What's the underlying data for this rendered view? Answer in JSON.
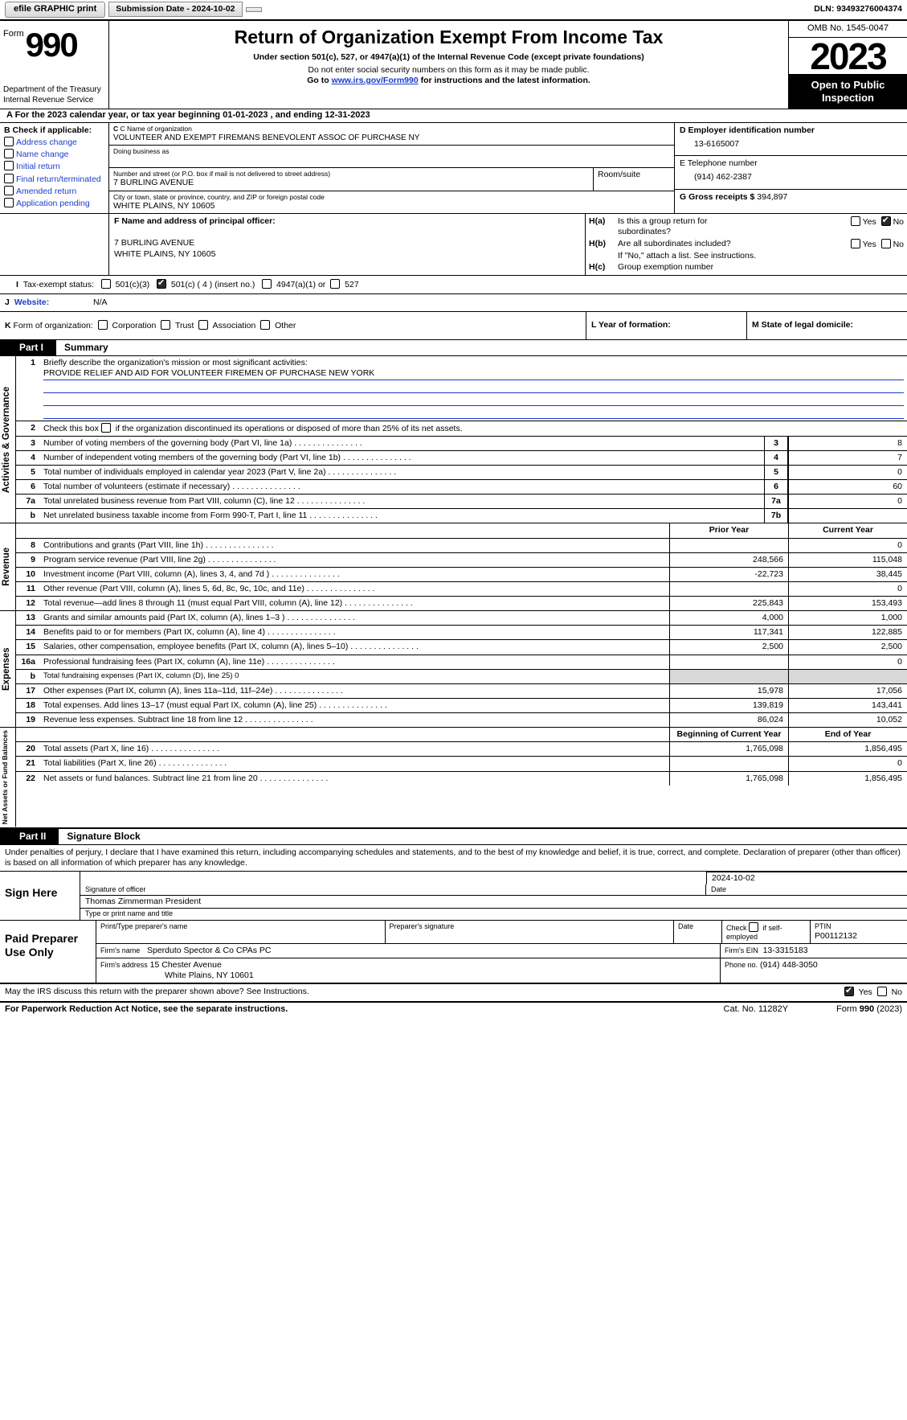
{
  "topbar": {
    "efile": "efile GRAPHIC print",
    "submission": "Submission Date - 2024-10-02",
    "dln": "DLN: 93493276004374"
  },
  "header": {
    "form_word": "Form",
    "form_num": "990",
    "dept": "Department of the Treasury\nInternal Revenue Service",
    "title": "Return of Organization Exempt From Income Tax",
    "sub1": "Under section 501(c), 527, or 4947(a)(1) of the Internal Revenue Code (except private foundations)",
    "sub2": "Do not enter social security numbers on this form as it may be made public.",
    "sub3_pre": "Go to ",
    "sub3_link": "www.irs.gov/Form990",
    "sub3_post": " for instructions and the latest information.",
    "omb": "OMB No. 1545-0047",
    "year": "2023",
    "inspect": "Open to Public Inspection"
  },
  "row_a": "A  For the 2023 calendar year, or tax year beginning 01-01-2023    , and ending 12-31-2023",
  "col_b": {
    "header": "B Check if applicable:",
    "items": [
      "Address change",
      "Name change",
      "Initial return",
      "Final return/terminated",
      "Amended return",
      "Application pending"
    ]
  },
  "col_c": {
    "name_lbl": "C Name of organization",
    "name": "VOLUNTEER AND EXEMPT FIREMANS BENEVOLENT ASSOC OF PURCHASE NY",
    "dba_lbl": "Doing business as",
    "addr_lbl": "Number and street (or P.O. box if mail is not delivered to street address)",
    "addr": "7 BURLING AVENUE",
    "room_lbl": "Room/suite",
    "city_lbl": "City or town, state or province, country, and ZIP or foreign postal code",
    "city": "WHITE PLAINS, NY  10605"
  },
  "col_d": {
    "ein_lbl": "D Employer identification number",
    "ein": "13-6165007",
    "tel_lbl": "E Telephone number",
    "tel": "(914) 462-2387",
    "gross_lbl": "G Gross receipts $ ",
    "gross": "394,897"
  },
  "block_f": {
    "lbl": "F  Name and address of principal officer:",
    "addr1": "7 BURLING AVENUE",
    "addr2": "WHITE PLAINS, NY  10605"
  },
  "block_h": {
    "ha_lbl": "H(a)",
    "ha_txt1": "Is this a group return for",
    "ha_txt2": "subordinates?",
    "hb_lbl": "H(b)",
    "hb_txt": "Are all subordinates included?",
    "hb_note": "If \"No,\" attach a list. See instructions.",
    "hc_lbl": "H(c)",
    "hc_txt": "Group exemption number",
    "yes": "Yes",
    "no": "No"
  },
  "row_i": {
    "lbl": "I  Tax-exempt status:",
    "opts": [
      "501(c)(3)",
      "501(c) ( 4 ) (insert no.)",
      "4947(a)(1) or",
      "527"
    ]
  },
  "row_j": {
    "lbl": "J  Website:",
    "val": "N/A"
  },
  "row_k": {
    "lbl": "K Form of organization:",
    "opts": [
      "Corporation",
      "Trust",
      "Association",
      "Other"
    ],
    "l": "L Year of formation:",
    "m": "M State of legal domicile:"
  },
  "part1": {
    "tab": "Part I",
    "title": "Summary"
  },
  "gov": {
    "side": "Activities & Governance",
    "l1": "Briefly describe the organization's mission or most significant activities:",
    "l1v": "PROVIDE RELIEF AND AID FOR VOLUNTEER FIREMEN OF PURCHASE NEW YORK",
    "l2": "Check this box         if the organization discontinued its operations or disposed of more than 25% of its net assets.",
    "rows": [
      {
        "n": "3",
        "t": "Number of voting members of the governing body (Part VI, line 1a)",
        "ref": "3",
        "v": "8"
      },
      {
        "n": "4",
        "t": "Number of independent voting members of the governing body (Part VI, line 1b)",
        "ref": "4",
        "v": "7"
      },
      {
        "n": "5",
        "t": "Total number of individuals employed in calendar year 2023 (Part V, line 2a)",
        "ref": "5",
        "v": "0"
      },
      {
        "n": "6",
        "t": "Total number of volunteers (estimate if necessary)",
        "ref": "6",
        "v": "60"
      },
      {
        "n": "7a",
        "t": "Total unrelated business revenue from Part VIII, column (C), line 12",
        "ref": "7a",
        "v": "0"
      },
      {
        "n": "b",
        "nplain": "",
        "t": "Net unrelated business taxable income from Form 990-T, Part I, line 11",
        "ref": "7b",
        "v": ""
      }
    ]
  },
  "rev": {
    "side": "Revenue",
    "col_prior": "Prior Year",
    "col_curr": "Current Year",
    "rows": [
      {
        "n": "8",
        "t": "Contributions and grants (Part VIII, line 1h)",
        "py": "",
        "cy": "0"
      },
      {
        "n": "9",
        "t": "Program service revenue (Part VIII, line 2g)",
        "py": "248,566",
        "cy": "115,048"
      },
      {
        "n": "10",
        "t": "Investment income (Part VIII, column (A), lines 3, 4, and 7d )",
        "py": "-22,723",
        "cy": "38,445"
      },
      {
        "n": "11",
        "t": "Other revenue (Part VIII, column (A), lines 5, 6d, 8c, 9c, 10c, and 11e)",
        "py": "",
        "cy": "0"
      },
      {
        "n": "12",
        "t": "Total revenue—add lines 8 through 11 (must equal Part VIII, column (A), line 12)",
        "py": "225,843",
        "cy": "153,493"
      }
    ]
  },
  "exp": {
    "side": "Expenses",
    "rows": [
      {
        "n": "13",
        "t": "Grants and similar amounts paid (Part IX, column (A), lines 1–3 )",
        "py": "4,000",
        "cy": "1,000"
      },
      {
        "n": "14",
        "t": "Benefits paid to or for members (Part IX, column (A), line 4)",
        "py": "117,341",
        "cy": "122,885"
      },
      {
        "n": "15",
        "t": "Salaries, other compensation, employee benefits (Part IX, column (A), lines 5–10)",
        "py": "2,500",
        "cy": "2,500"
      },
      {
        "n": "16a",
        "t": "Professional fundraising fees (Part IX, column (A), line 11e)",
        "py": "",
        "cy": "0"
      },
      {
        "n": "b",
        "t": "Total fundraising expenses (Part IX, column (D), line 25) 0",
        "shade": true
      },
      {
        "n": "17",
        "t": "Other expenses (Part IX, column (A), lines 11a–11d, 11f–24e)",
        "py": "15,978",
        "cy": "17,056"
      },
      {
        "n": "18",
        "t": "Total expenses. Add lines 13–17 (must equal Part IX, column (A), line 25)",
        "py": "139,819",
        "cy": "143,441"
      },
      {
        "n": "19",
        "t": "Revenue less expenses. Subtract line 18 from line 12",
        "py": "86,024",
        "cy": "10,052"
      }
    ]
  },
  "net": {
    "side": "Net Assets or Fund Balances",
    "col_beg": "Beginning of Current Year",
    "col_end": "End of Year",
    "rows": [
      {
        "n": "20",
        "t": "Total assets (Part X, line 16)",
        "py": "1,765,098",
        "cy": "1,856,495"
      },
      {
        "n": "21",
        "t": "Total liabilities (Part X, line 26)",
        "py": "",
        "cy": "0"
      },
      {
        "n": "22",
        "t": "Net assets or fund balances. Subtract line 21 from line 20",
        "py": "1,765,098",
        "cy": "1,856,495"
      }
    ]
  },
  "part2": {
    "tab": "Part II",
    "title": "Signature Block"
  },
  "sig_intro": "Under penalties of perjury, I declare that I have examined this return, including accompanying schedules and statements, and to the best of my knowledge and belief, it is true, correct, and complete. Declaration of preparer (other than officer) is based on all information of which preparer has any knowledge.",
  "sign": {
    "side": "Sign Here",
    "date": "2024-10-02",
    "sig_lbl": "Signature of officer",
    "date_lbl": "Date",
    "officer": "Thomas Zimmerman  President",
    "type_lbl": "Type or print name and title"
  },
  "prep": {
    "side": "Paid Preparer Use Only",
    "h1": "Print/Type preparer's name",
    "h2": "Preparer's signature",
    "h3": "Date",
    "h4_pre": "Check",
    "h4_post": "if self-employed",
    "h5": "PTIN",
    "ptin": "P00112132",
    "firm_lbl": "Firm's name",
    "firm": "Sperduto Spector & Co CPAs PC",
    "fein_lbl": "Firm's EIN",
    "fein": "13-3315183",
    "faddr_lbl": "Firm's address",
    "faddr1": "15 Chester Avenue",
    "faddr2": "White Plains, NY  10601",
    "phone_lbl": "Phone no.",
    "phone": "(914) 448-3050"
  },
  "discuss": "May the IRS discuss this return with the preparer shown above? See Instructions.",
  "footer": {
    "left": "For Paperwork Reduction Act Notice, see the separate instructions.",
    "mid": "Cat. No. 11282Y",
    "right_pre": "Form ",
    "right_form": "990",
    "right_yr": " (2023)"
  }
}
